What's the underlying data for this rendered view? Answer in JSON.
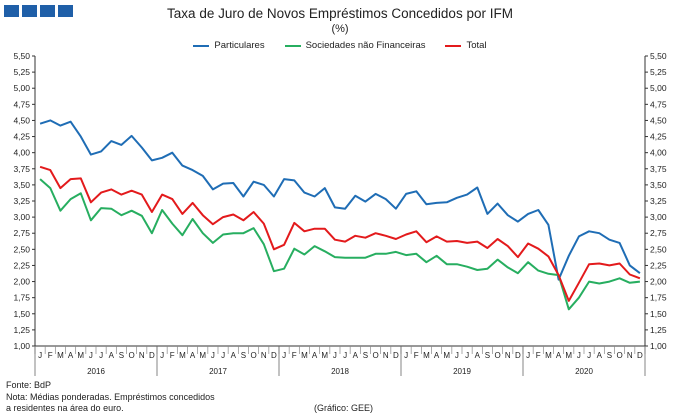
{
  "header": {
    "title": "Taxa de Juro de Novos Empréstimos Concedidos por IFM",
    "subtitle": "(%)"
  },
  "colors": {
    "particulares": "#1f6db5",
    "sociedades": "#27ae60",
    "total": "#e31a1c",
    "logo": "#1f5fa8"
  },
  "footer": {
    "source": "Fonte: BdP",
    "note_line1": "Nota: Médias ponderadas.  Empréstimos concedidos",
    "note_line2": "a residentes na área do euro.",
    "credit": "(Gráfico: GEE)"
  },
  "chart_data": {
    "type": "line",
    "title": "Taxa de Juro de Novos Empréstimos Concedidos por IFM",
    "subtitle": "(%)",
    "ylim": [
      1.0,
      5.5
    ],
    "y_ticks": [
      "1,00",
      "1,25",
      "1,50",
      "1,75",
      "2,00",
      "2,25",
      "2,50",
      "2,75",
      "3,00",
      "3,25",
      "3,50",
      "3,75",
      "4,00",
      "4,25",
      "4,50",
      "4,75",
      "5,00",
      "5,25",
      "5,50"
    ],
    "month_labels": [
      "J",
      "F",
      "M",
      "A",
      "M",
      "J",
      "J",
      "A",
      "S",
      "O",
      "N",
      "D",
      "J",
      "F",
      "M",
      "A",
      "M",
      "J",
      "J",
      "A",
      "S",
      "O",
      "N",
      "D",
      "J",
      "F",
      "M",
      "A",
      "M",
      "J",
      "J",
      "A",
      "S",
      "O",
      "N",
      "D",
      "J",
      "F",
      "M",
      "A",
      "M",
      "J",
      "J",
      "A",
      "S",
      "O",
      "N",
      "D",
      "J",
      "F",
      "M",
      "A",
      "M",
      "J",
      "J",
      "A",
      "S",
      "O",
      "N",
      "D"
    ],
    "years": [
      "2016",
      "2017",
      "2018",
      "2019",
      "2020"
    ],
    "legend_position": "top",
    "grid": false,
    "series": [
      {
        "name": "Particulares",
        "color": "#1f6db5",
        "values": [
          4.45,
          4.5,
          4.42,
          4.48,
          4.25,
          3.97,
          4.02,
          4.18,
          4.12,
          4.26,
          4.08,
          3.88,
          3.92,
          4.0,
          3.8,
          3.73,
          3.64,
          3.43,
          3.52,
          3.53,
          3.32,
          3.55,
          3.5,
          3.32,
          3.59,
          3.57,
          3.38,
          3.32,
          3.45,
          3.15,
          3.13,
          3.33,
          3.24,
          3.36,
          3.28,
          3.13,
          3.36,
          3.4,
          3.2,
          3.22,
          3.23,
          3.3,
          3.35,
          3.46,
          3.05,
          3.21,
          3.03,
          2.93,
          3.05,
          3.11,
          2.88,
          2.03,
          2.4,
          2.7,
          2.78,
          2.75,
          2.65,
          2.6,
          2.25,
          2.13
        ]
      },
      {
        "name": "Sociedades não Financeiras",
        "color": "#27ae60",
        "values": [
          3.59,
          3.45,
          3.1,
          3.28,
          3.37,
          2.95,
          3.14,
          3.13,
          3.03,
          3.1,
          3.02,
          2.75,
          3.11,
          2.9,
          2.72,
          2.97,
          2.75,
          2.6,
          2.73,
          2.75,
          2.75,
          2.83,
          2.58,
          2.16,
          2.2,
          2.51,
          2.42,
          2.55,
          2.47,
          2.38,
          2.37,
          2.37,
          2.37,
          2.43,
          2.43,
          2.46,
          2.41,
          2.43,
          2.3,
          2.4,
          2.27,
          2.27,
          2.23,
          2.18,
          2.2,
          2.34,
          2.22,
          2.13,
          2.3,
          2.17,
          2.12,
          2.1,
          1.57,
          1.75,
          2.0,
          1.97,
          2.0,
          2.05,
          1.98,
          2.0
        ]
      },
      {
        "name": "Total",
        "color": "#e31a1c",
        "values": [
          3.78,
          3.73,
          3.45,
          3.59,
          3.6,
          3.23,
          3.38,
          3.43,
          3.35,
          3.41,
          3.35,
          3.08,
          3.35,
          3.28,
          3.05,
          3.22,
          3.03,
          2.89,
          3.0,
          3.04,
          2.95,
          3.08,
          2.9,
          2.5,
          2.57,
          2.91,
          2.78,
          2.82,
          2.82,
          2.65,
          2.62,
          2.71,
          2.68,
          2.75,
          2.71,
          2.66,
          2.73,
          2.78,
          2.61,
          2.7,
          2.62,
          2.63,
          2.6,
          2.62,
          2.52,
          2.66,
          2.55,
          2.38,
          2.59,
          2.51,
          2.39,
          2.1,
          1.7,
          1.98,
          2.27,
          2.28,
          2.25,
          2.28,
          2.11,
          2.05
        ]
      }
    ]
  }
}
